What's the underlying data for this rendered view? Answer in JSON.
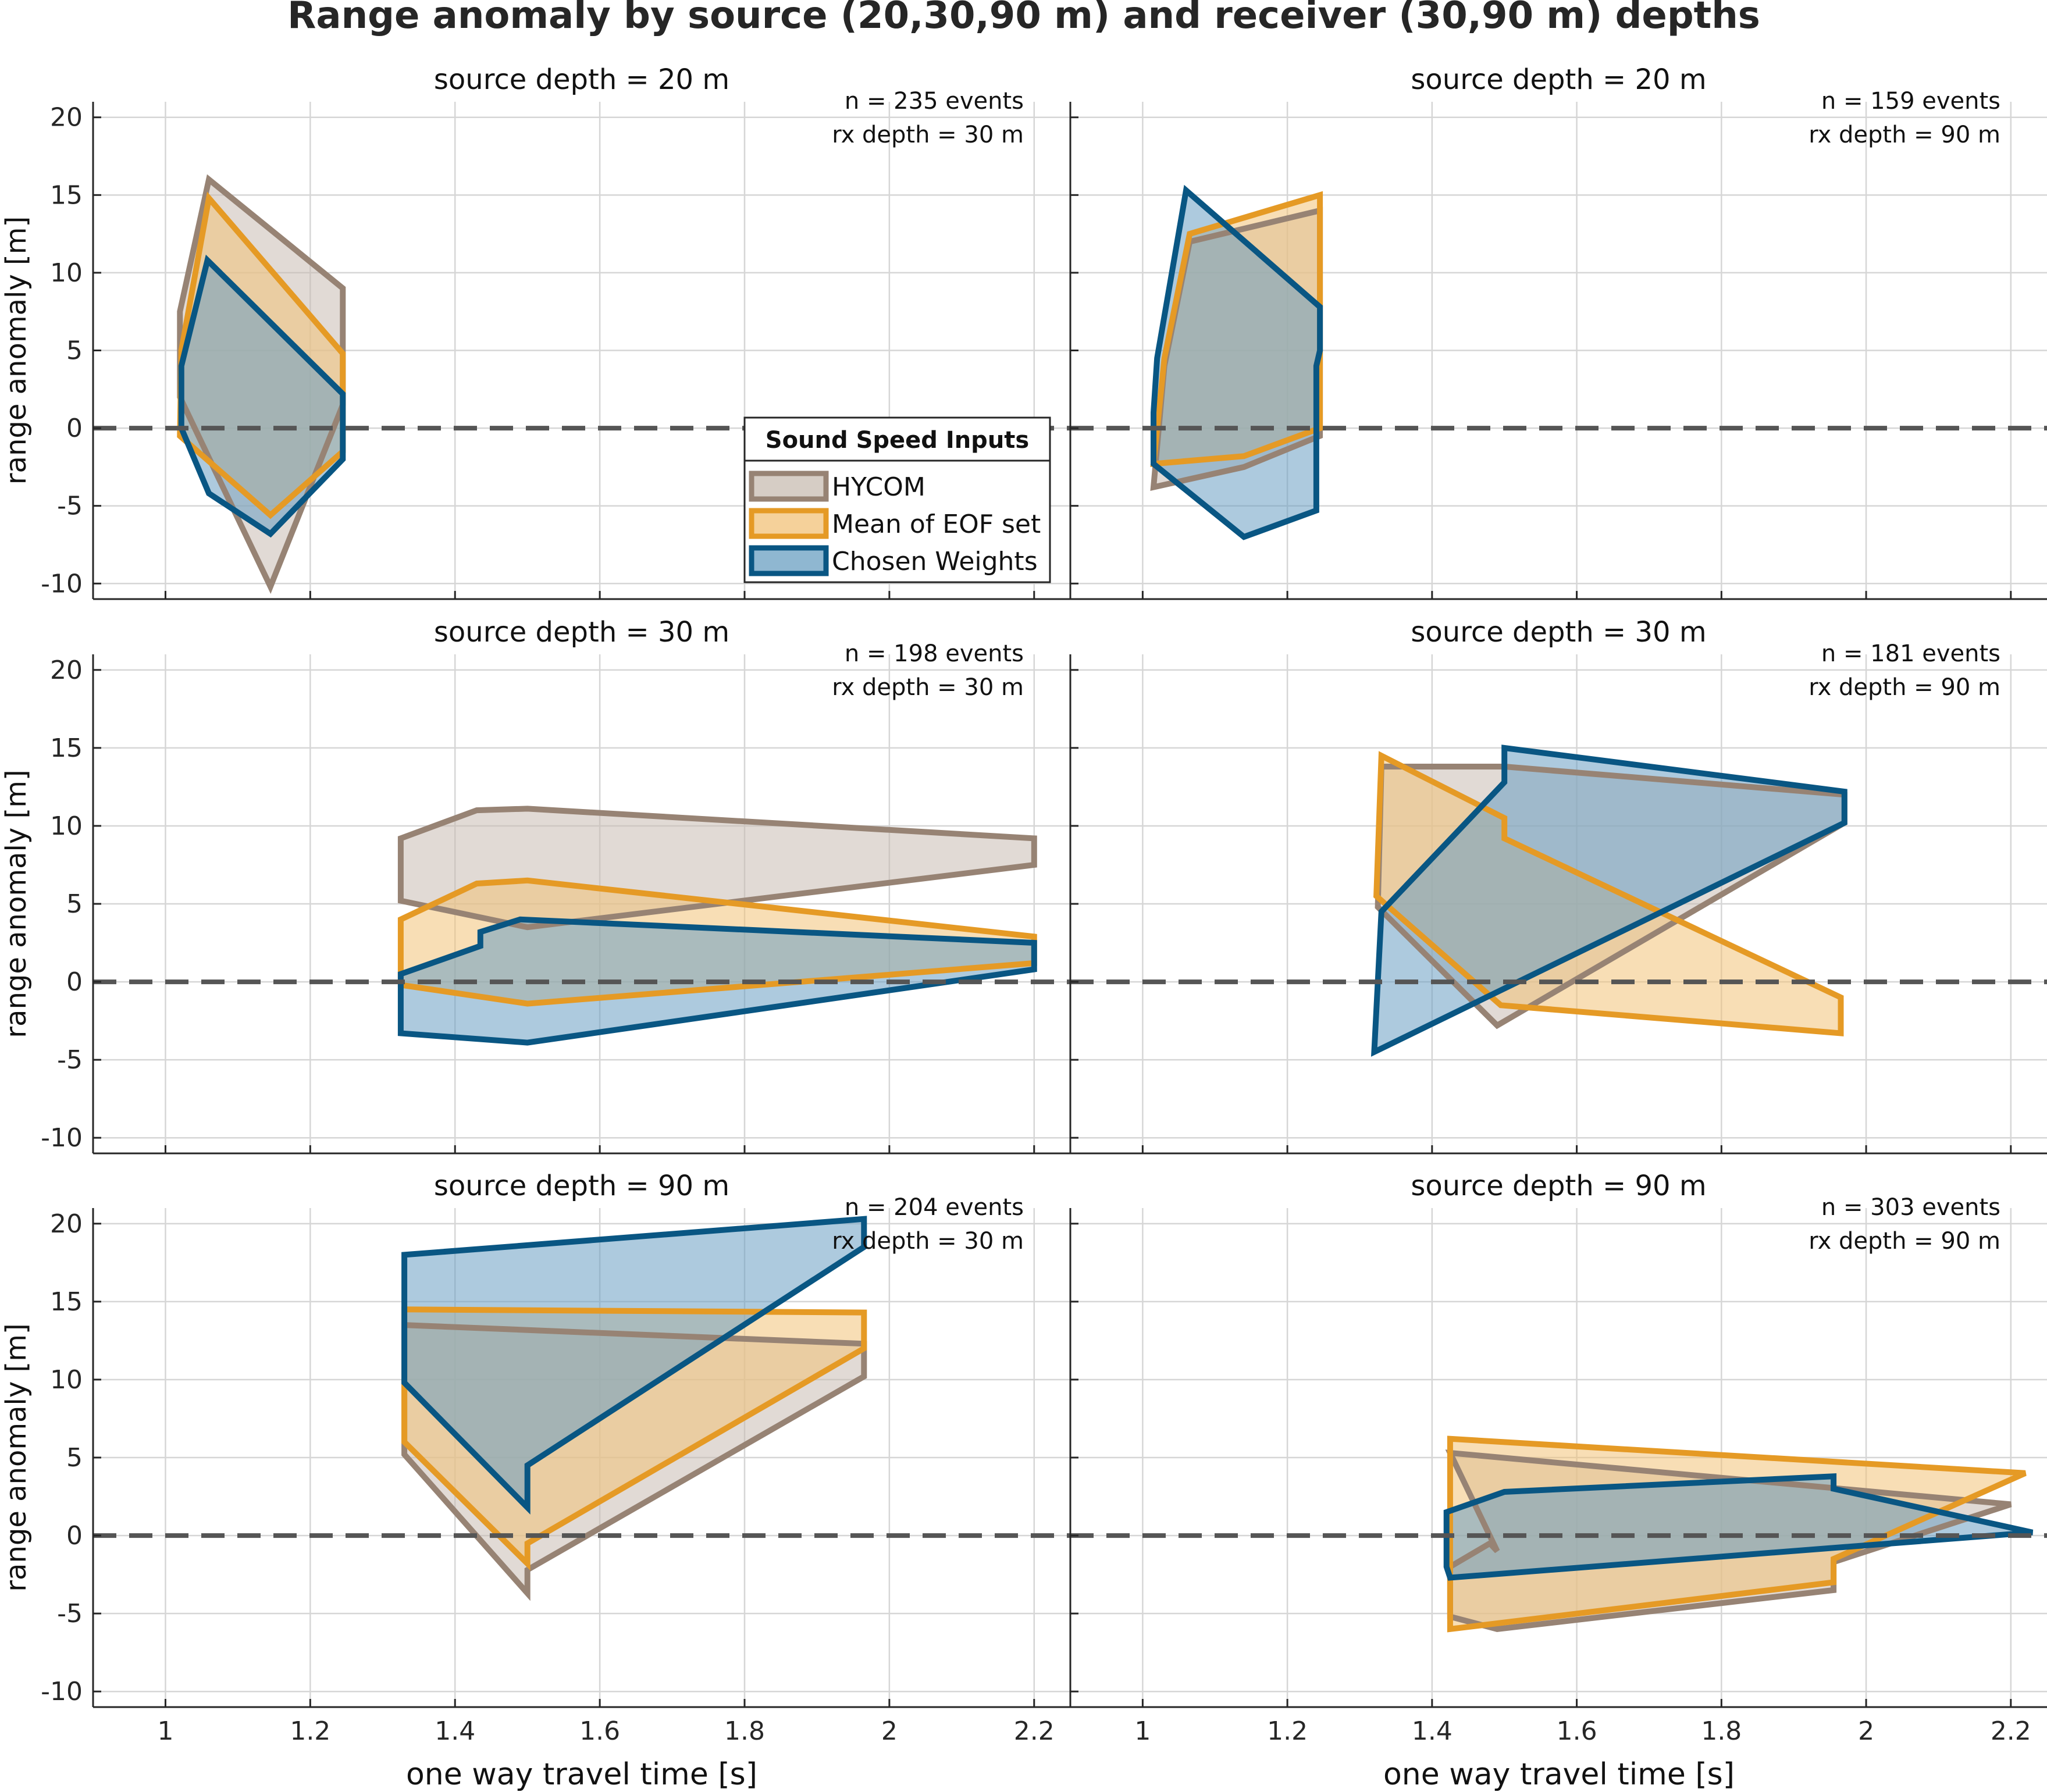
{
  "figure": {
    "title": "Range anomaly by source (20,30,90 m) and receiver (30,90 m) depths",
    "xlabel": "one way travel time [s]",
    "ylabel": "range anomaly [m]",
    "legend": {
      "title": "Sound Speed Inputs",
      "placement": "top-right of top-left panel",
      "entries": [
        "HYCOM",
        "Mean of EOF set",
        "Chosen Weights"
      ]
    }
  },
  "colors": {
    "HYCOM": {
      "fill": "#c8bcb2",
      "stroke": "#978374"
    },
    "Mean of EOF set": {
      "fill": "#f2c278",
      "stroke": "#e59a25"
    },
    "Chosen Weights": {
      "fill": "#6a9fc2",
      "stroke": "#095683"
    },
    "overlap": "#6c7c70",
    "zero_line": "#555555"
  },
  "chart_data": {
    "type": "area",
    "layout": "3 rows x 2 columns",
    "xlim": [
      0.9,
      2.25
    ],
    "ylim": [
      -11,
      21
    ],
    "xticks": [
      "1",
      "1.2",
      "1.4",
      "1.6",
      "1.8",
      "2",
      "2.2"
    ],
    "xtick_values": [
      1,
      1.2,
      1.4,
      1.6,
      1.8,
      2,
      2.2
    ],
    "yticks": [
      "-10",
      "-5",
      "0",
      "5",
      "10",
      "15",
      "20"
    ],
    "ytick_values": [
      -10,
      -5,
      0,
      5,
      10,
      15,
      20
    ],
    "grid": true,
    "reference_line": {
      "y": 0,
      "style": "dashed"
    },
    "panels": [
      {
        "title": "source depth = 20 m",
        "events": "n = 235 events",
        "rx": "rx depth = 30 m",
        "series": [
          {
            "name": "HYCOM",
            "points": [
              [
                1.02,
                7.5
              ],
              [
                1.06,
                16
              ],
              [
                1.245,
                9
              ],
              [
                1.245,
                1.5
              ],
              [
                1.145,
                -10.2
              ],
              [
                1.02,
                2
              ]
            ]
          },
          {
            "name": "Mean of EOF set",
            "points": [
              [
                1.022,
                5
              ],
              [
                1.06,
                14.8
              ],
              [
                1.245,
                4.8
              ],
              [
                1.245,
                -1.5
              ],
              [
                1.145,
                -5.6
              ],
              [
                1.02,
                -0.5
              ]
            ]
          },
          {
            "name": "Chosen Weights",
            "points": [
              [
                1.022,
                4
              ],
              [
                1.058,
                10.8
              ],
              [
                1.245,
                2.2
              ],
              [
                1.245,
                -2
              ],
              [
                1.145,
                -6.8
              ],
              [
                1.06,
                -4.2
              ],
              [
                1.022,
                0
              ]
            ]
          }
        ]
      },
      {
        "title": "source depth = 20 m",
        "events": "n = 159 events",
        "rx": "rx depth = 90 m",
        "series": [
          {
            "name": "HYCOM",
            "points": [
              [
                1.03,
                4
              ],
              [
                1.065,
                12
              ],
              [
                1.245,
                14
              ],
              [
                1.245,
                -0.5
              ],
              [
                1.14,
                -2.5
              ],
              [
                1.015,
                -3.8
              ]
            ]
          },
          {
            "name": "Mean of EOF set",
            "points": [
              [
                1.03,
                4.5
              ],
              [
                1.065,
                12.5
              ],
              [
                1.245,
                15
              ],
              [
                1.245,
                0
              ],
              [
                1.14,
                -1.8
              ],
              [
                1.015,
                -2.3
              ]
            ]
          },
          {
            "name": "Chosen Weights",
            "points": [
              [
                1.02,
                4.5
              ],
              [
                1.06,
                15.3
              ],
              [
                1.245,
                7.8
              ],
              [
                1.245,
                5
              ],
              [
                1.24,
                4
              ],
              [
                1.24,
                -5.3
              ],
              [
                1.14,
                -7
              ],
              [
                1.015,
                -2.3
              ],
              [
                1.015,
                1
              ]
            ]
          }
        ]
      },
      {
        "title": "source depth = 30 m",
        "events": "n = 198 events",
        "rx": "rx depth = 30 m",
        "series": [
          {
            "name": "HYCOM",
            "points": [
              [
                1.325,
                9.2
              ],
              [
                1.43,
                11
              ],
              [
                1.5,
                11.1
              ],
              [
                2.2,
                9.2
              ],
              [
                2.2,
                7.5
              ],
              [
                1.5,
                3.5
              ],
              [
                1.325,
                5.2
              ]
            ]
          },
          {
            "name": "Mean of EOF set",
            "points": [
              [
                1.325,
                4
              ],
              [
                1.43,
                6.3
              ],
              [
                1.5,
                6.5
              ],
              [
                2.2,
                2.9
              ],
              [
                2.2,
                1.2
              ],
              [
                1.5,
                -1.4
              ],
              [
                1.325,
                -0.2
              ]
            ]
          },
          {
            "name": "Chosen Weights",
            "points": [
              [
                1.325,
                0.5
              ],
              [
                1.435,
                2.3
              ],
              [
                1.435,
                3.2
              ],
              [
                1.49,
                4
              ],
              [
                2.2,
                2.5
              ],
              [
                2.2,
                0.8
              ],
              [
                1.5,
                -3.9
              ],
              [
                1.325,
                -3.3
              ]
            ]
          }
        ]
      },
      {
        "title": "source depth = 30 m",
        "events": "n = 181 events",
        "rx": "rx depth = 90 m",
        "series": [
          {
            "name": "HYCOM",
            "points": [
              [
                1.33,
                13.8
              ],
              [
                1.5,
                13.8
              ],
              [
                1.97,
                12
              ],
              [
                1.97,
                10.2
              ],
              [
                1.49,
                -2.8
              ],
              [
                1.325,
                4.8
              ]
            ]
          },
          {
            "name": "Mean of EOF set",
            "points": [
              [
                1.33,
                14.5
              ],
              [
                1.5,
                10.5
              ],
              [
                1.5,
                9.2
              ],
              [
                1.965,
                -1
              ],
              [
                1.965,
                -3.3
              ],
              [
                1.495,
                -1.5
              ],
              [
                1.323,
                5.5
              ]
            ]
          },
          {
            "name": "Chosen Weights",
            "points": [
              [
                1.33,
                4.5
              ],
              [
                1.5,
                12.8
              ],
              [
                1.5,
                15
              ],
              [
                1.97,
                12.2
              ],
              [
                1.97,
                10.2
              ],
              [
                1.32,
                -4.5
              ]
            ]
          }
        ]
      },
      {
        "title": "source depth = 90 m",
        "events": "n = 204 events",
        "rx": "rx depth = 30 m",
        "series": [
          {
            "name": "HYCOM",
            "points": [
              [
                1.33,
                13.5
              ],
              [
                1.965,
                12.3
              ],
              [
                1.965,
                10.2
              ],
              [
                1.5,
                -2.2
              ],
              [
                1.5,
                -3.7
              ],
              [
                1.33,
                5.2
              ]
            ]
          },
          {
            "name": "Mean of EOF set",
            "points": [
              [
                1.33,
                14.5
              ],
              [
                1.965,
                14.3
              ],
              [
                1.965,
                12
              ],
              [
                1.5,
                -0.5
              ],
              [
                1.5,
                -1.8
              ],
              [
                1.33,
                6
              ]
            ]
          },
          {
            "name": "Chosen Weights",
            "points": [
              [
                1.33,
                18
              ],
              [
                1.965,
                20.3
              ],
              [
                1.965,
                18.5
              ],
              [
                1.5,
                4.5
              ],
              [
                1.5,
                1.8
              ],
              [
                1.33,
                9.8
              ]
            ]
          }
        ]
      },
      {
        "title": "source depth = 90 m",
        "events": "n = 303 events",
        "rx": "rx depth = 90 m",
        "series": [
          {
            "name": "HYCOM",
            "points": [
              [
                1.425,
                5.3
              ],
              [
                2.2,
                2
              ],
              [
                1.955,
                -1.7
              ],
              [
                1.955,
                -3.5
              ],
              [
                1.49,
                -6
              ],
              [
                1.425,
                -5.2
              ],
              [
                1.425,
                -2
              ],
              [
                1.48,
                -0.5
              ],
              [
                1.49,
                -1
              ]
            ]
          },
          {
            "name": "Mean of EOF set",
            "points": [
              [
                1.425,
                6.2
              ],
              [
                2.22,
                4
              ],
              [
                1.955,
                -1.5
              ],
              [
                1.955,
                -3
              ],
              [
                1.425,
                -6
              ],
              [
                1.425,
                -3
              ]
            ]
          },
          {
            "name": "Chosen Weights",
            "points": [
              [
                1.42,
                1.5
              ],
              [
                1.5,
                2.8
              ],
              [
                1.955,
                3.8
              ],
              [
                1.955,
                3
              ],
              [
                2.23,
                0.2
              ],
              [
                1.425,
                -2.7
              ],
              [
                1.42,
                -2
              ]
            ]
          }
        ]
      }
    ]
  }
}
